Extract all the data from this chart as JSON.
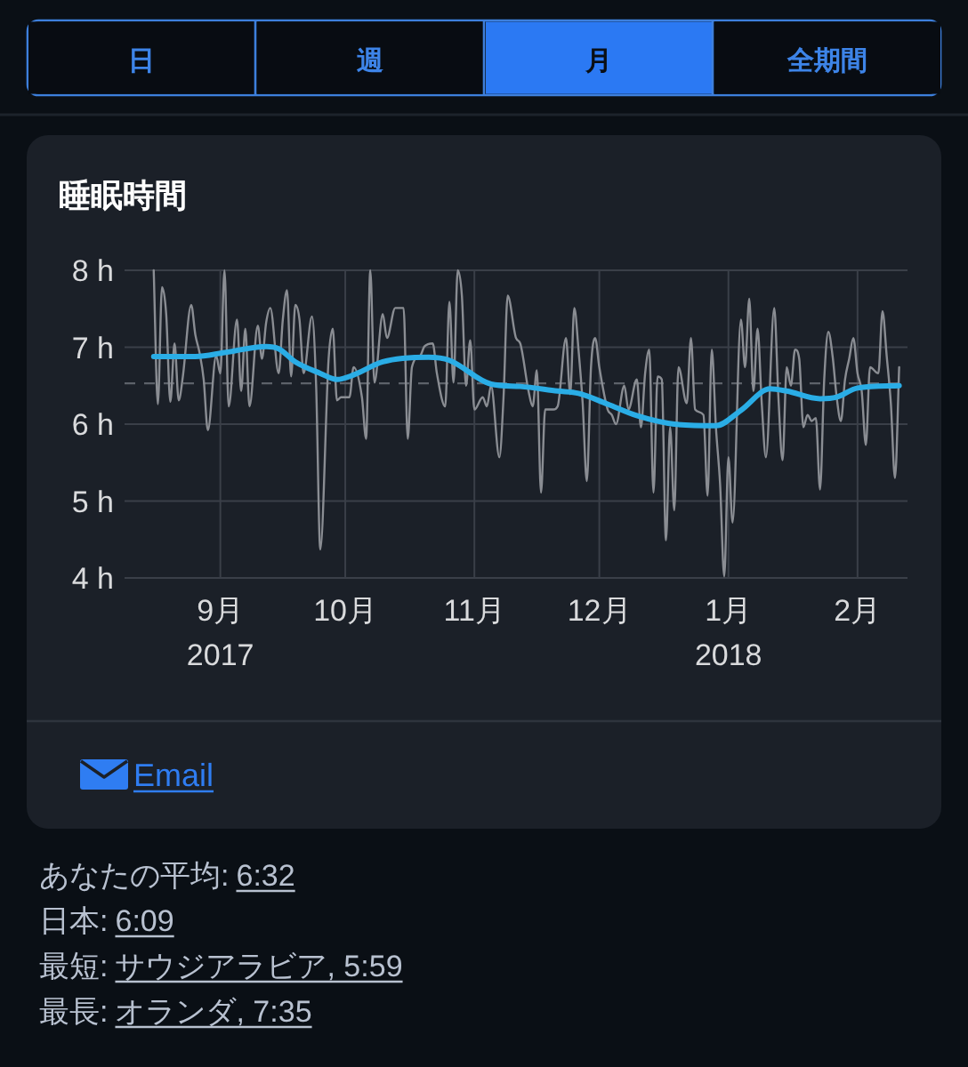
{
  "chart_data": {
    "type": "line",
    "title": "睡眠時間",
    "annotations": [
      "日",
      "週",
      "月",
      "全期間",
      "Email",
      "あなたの平均: 6:32",
      "日本: 6:09",
      "最短: サウジアラビア, 5:59",
      "最長: オランダ, 7:35"
    ],
    "xlim": [
      "2017-08-09",
      "2018-02-13"
    ],
    "xticks": [
      {
        "value": "2017-09-01",
        "label": "9月\n2017"
      },
      {
        "value": "2017-10-01",
        "label": "10月"
      },
      {
        "value": "2017-11-01",
        "label": "11月"
      },
      {
        "value": "2017-12-01",
        "label": "12月"
      },
      {
        "value": "2018-01-01",
        "label": "1月\n2018"
      },
      {
        "value": "2018-02-01",
        "label": "2月"
      }
    ],
    "ylim": [
      4,
      8
    ],
    "yticks": [
      {
        "value": 4,
        "label": "4 h"
      },
      {
        "value": 5,
        "label": "5 h"
      },
      {
        "value": 6,
        "label": "6 h"
      },
      {
        "value": 7,
        "label": "7 h"
      },
      {
        "value": 8,
        "label": "8 h"
      }
    ],
    "grid": true,
    "ref_lines": [
      {
        "axis": "y",
        "value": 6.53,
        "color": "#5d626a",
        "line_style": "dashed"
      }
    ],
    "series": [
      {
        "color": "#8a8d93",
        "x": [
          "2017-08-16",
          "2017-08-17",
          "2017-08-18",
          "2017-08-19",
          "2017-08-20",
          "2017-08-21",
          "2017-08-22",
          "2017-08-23",
          "2017-08-25",
          "2017-08-26",
          "2017-08-27",
          "2017-08-28",
          "2017-08-29",
          "2017-08-31",
          "2017-09-01",
          "2017-09-02",
          "2017-09-03",
          "2017-09-05",
          "2017-09-06",
          "2017-09-07",
          "2017-09-08",
          "2017-09-10",
          "2017-09-11",
          "2017-09-12",
          "2017-09-13",
          "2017-09-15",
          "2017-09-16",
          "2017-09-17",
          "2017-09-18",
          "2017-09-19",
          "2017-09-20",
          "2017-09-21",
          "2017-09-23",
          "2017-09-24",
          "2017-09-25",
          "2017-09-27",
          "2017-09-28",
          "2017-09-29",
          "2017-09-30",
          "2017-10-02",
          "2017-10-03",
          "2017-10-05",
          "2017-10-06",
          "2017-10-07",
          "2017-10-08",
          "2017-10-10",
          "2017-10-11",
          "2017-10-13",
          "2017-10-15",
          "2017-10-16",
          "2017-10-17",
          "2017-10-19",
          "2017-10-20",
          "2017-10-22",
          "2017-10-23",
          "2017-10-25",
          "2017-10-26",
          "2017-10-27",
          "2017-10-28",
          "2017-10-29",
          "2017-10-30",
          "2017-10-31",
          "2017-11-01",
          "2017-11-03",
          "2017-11-04",
          "2017-11-05",
          "2017-11-07",
          "2017-11-08",
          "2017-11-09",
          "2017-11-11",
          "2017-11-12",
          "2017-11-14",
          "2017-11-15",
          "2017-11-16",
          "2017-11-17",
          "2017-11-18",
          "2017-11-20",
          "2017-11-21",
          "2017-11-23",
          "2017-11-24",
          "2017-11-25",
          "2017-11-26",
          "2017-11-27",
          "2017-11-28",
          "2017-11-29",
          "2017-11-30",
          "2017-12-01",
          "2017-12-03",
          "2017-12-04",
          "2017-12-05",
          "2017-12-07",
          "2017-12-08",
          "2017-12-10",
          "2017-12-11",
          "2017-12-12",
          "2017-12-13",
          "2017-12-14",
          "2017-12-15",
          "2017-12-16",
          "2017-12-17",
          "2017-12-18",
          "2017-12-19",
          "2017-12-20",
          "2017-12-22",
          "2017-12-23",
          "2017-12-24",
          "2017-12-26",
          "2017-12-27",
          "2017-12-28",
          "2017-12-29",
          "2017-12-30",
          "2017-12-31",
          "2018-01-01",
          "2018-01-02",
          "2018-01-04",
          "2018-01-05",
          "2018-01-06",
          "2018-01-07",
          "2018-01-08",
          "2018-01-09",
          "2018-01-10",
          "2018-01-12",
          "2018-01-13",
          "2018-01-14",
          "2018-01-15",
          "2018-01-16",
          "2018-01-17",
          "2018-01-18",
          "2018-01-19",
          "2018-01-20",
          "2018-01-21",
          "2018-01-22",
          "2018-01-23",
          "2018-01-24",
          "2018-01-25",
          "2018-01-26",
          "2018-01-27",
          "2018-01-28",
          "2018-01-29",
          "2018-01-30",
          "2018-01-31",
          "2018-02-01",
          "2018-02-02",
          "2018-02-03",
          "2018-02-04",
          "2018-02-06",
          "2018-02-07",
          "2018-02-08",
          "2018-02-09",
          "2018-02-10",
          "2018-02-11"
        ],
        "values": [
          8.0,
          6.26,
          7.78,
          7.43,
          6.29,
          7.05,
          6.31,
          6.62,
          7.55,
          7.16,
          6.93,
          6.58,
          5.92,
          6.89,
          6.66,
          8.0,
          6.23,
          7.36,
          6.43,
          7.24,
          6.23,
          7.28,
          6.85,
          7.32,
          7.51,
          6.66,
          7.36,
          7.74,
          6.62,
          7.55,
          7.36,
          6.66,
          7.4,
          6.5,
          4.37,
          6.85,
          7.24,
          6.31,
          6.35,
          6.35,
          6.74,
          6.35,
          5.81,
          8.0,
          6.54,
          7.43,
          7.12,
          7.51,
          7.51,
          5.81,
          6.74,
          6.89,
          7.01,
          7.05,
          6.66,
          6.23,
          7.59,
          6.54,
          8.0,
          7.67,
          6.5,
          7.09,
          6.19,
          6.35,
          6.23,
          6.5,
          5.57,
          6.35,
          7.67,
          7.12,
          7.05,
          6.43,
          6.23,
          6.7,
          5.11,
          6.19,
          6.19,
          6.23,
          7.12,
          6.39,
          7.51,
          6.97,
          6.27,
          5.26,
          6.74,
          7.12,
          6.74,
          6.19,
          6.12,
          6.0,
          6.5,
          6.19,
          6.58,
          5.96,
          6.66,
          6.97,
          5.11,
          6.62,
          6.58,
          4.49,
          5.96,
          4.88,
          6.74,
          6.27,
          7.12,
          6.19,
          6.12,
          5.07,
          6.97,
          5.96,
          5.22,
          4.02,
          5.57,
          4.72,
          7.36,
          6.74,
          7.63,
          6.43,
          7.24,
          6.27,
          5.57,
          7.51,
          6.35,
          5.53,
          6.74,
          6.5,
          6.97,
          6.85,
          5.96,
          6.12,
          6.04,
          6.08,
          5.15,
          6.58,
          7.2,
          6.89,
          6.35,
          6.04,
          6.58,
          6.85,
          7.12,
          6.66,
          6.43,
          5.73,
          6.74,
          6.66,
          7.47,
          6.89,
          6.27,
          5.3,
          6.74
        ]
      },
      {
        "color": "#2aade6",
        "x": [
          "2017-08-16",
          "2017-08-26",
          "2017-09-02",
          "2017-09-12",
          "2017-09-15",
          "2017-09-19",
          "2017-09-25",
          "2017-09-29",
          "2017-10-03",
          "2017-10-10",
          "2017-10-21",
          "2017-10-26",
          "2017-11-05",
          "2017-11-12",
          "2017-11-21",
          "2017-11-26",
          "2017-12-03",
          "2017-12-10",
          "2017-12-19",
          "2017-12-29",
          "2018-01-04",
          "2018-01-11",
          "2018-01-15",
          "2018-01-23",
          "2018-01-27",
          "2018-02-01",
          "2018-02-11"
        ],
        "values": [
          6.88,
          6.88,
          6.93,
          7.01,
          6.98,
          6.81,
          6.66,
          6.58,
          6.64,
          6.81,
          6.87,
          6.83,
          6.52,
          6.49,
          6.43,
          6.4,
          6.26,
          6.11,
          6.0,
          5.98,
          6.18,
          6.46,
          6.43,
          6.33,
          6.35,
          6.47,
          6.5
        ]
      }
    ]
  }
}
